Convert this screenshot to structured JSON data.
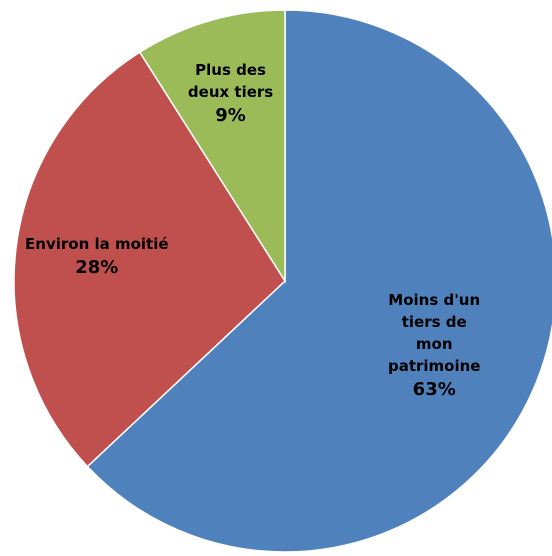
{
  "chart_data": {
    "type": "pie",
    "categories": [
      "Moins d'un tiers de\nmon patrimoine",
      "Environ la moitié",
      "Plus des\ndeux tiers"
    ],
    "values": [
      63,
      28,
      9
    ],
    "value_labels": [
      "63%",
      "28%",
      "9%"
    ],
    "colors": [
      "#4f81bd",
      "#c0504d",
      "#9bbb59"
    ]
  }
}
